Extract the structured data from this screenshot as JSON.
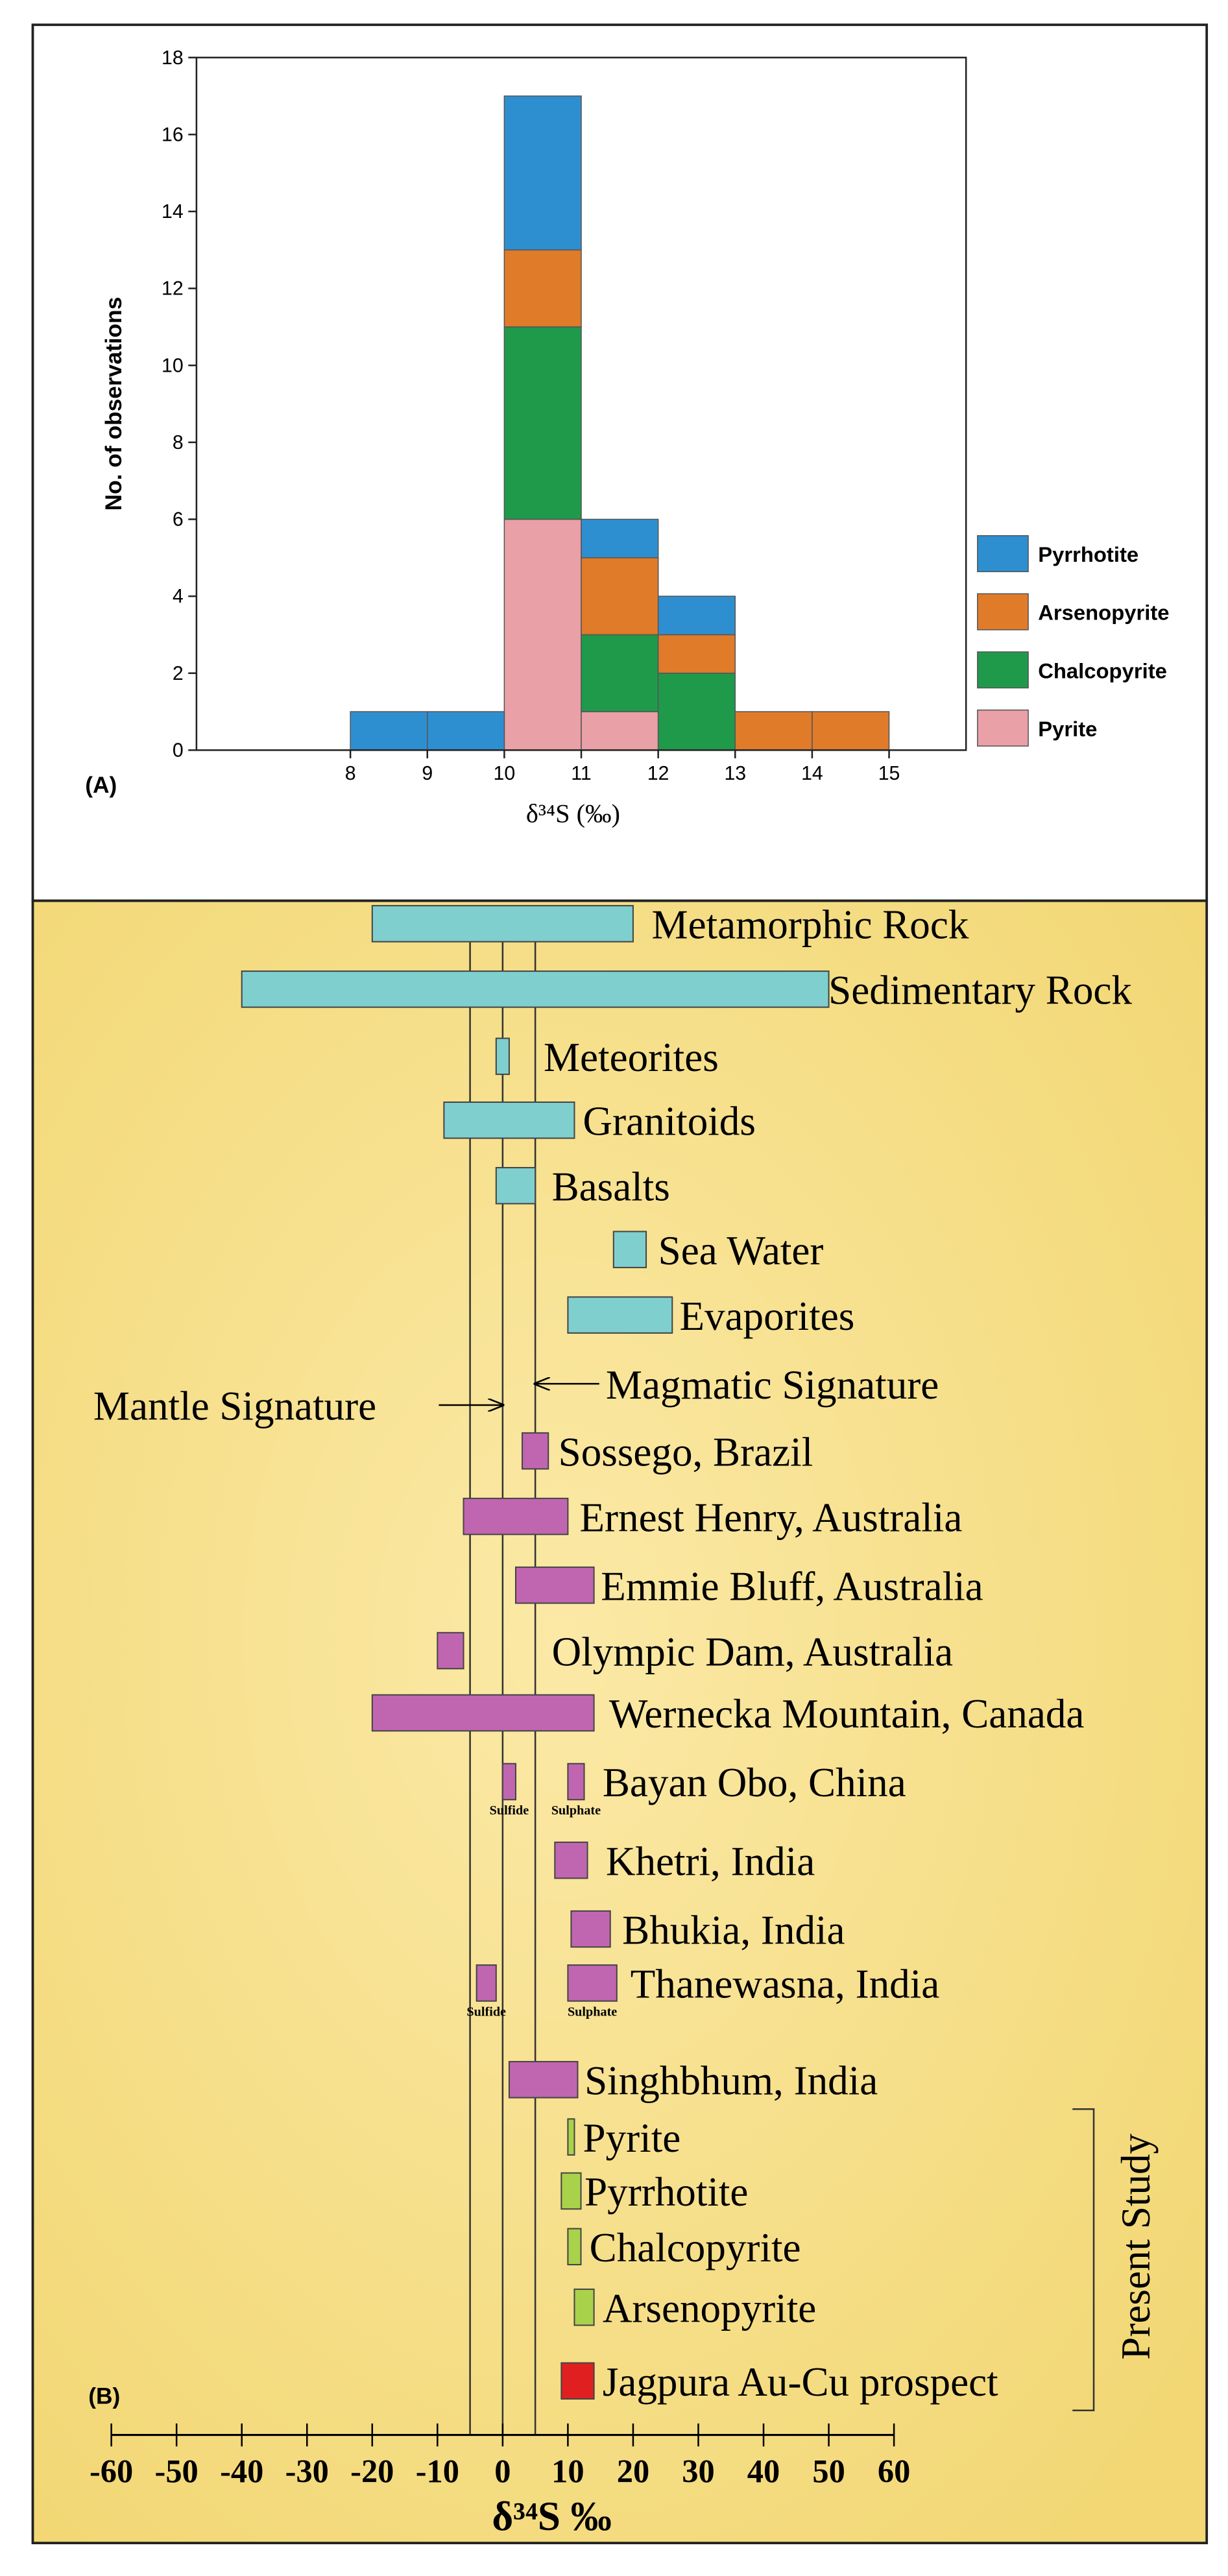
{
  "chart_data": [
    {
      "type": "histogram",
      "panel_label": "(A)",
      "ylabel": "No. of observations",
      "xlabel": "δ³⁴S (‰)",
      "bins": [
        8,
        9,
        10,
        11,
        12,
        13,
        14,
        15
      ],
      "series": [
        {
          "name": "Pyrite",
          "color": "#e9a0a6",
          "values": [
            0,
            0,
            6,
            1,
            0,
            0,
            0
          ]
        },
        {
          "name": "Chalcopyrite",
          "color": "#1f9a4b",
          "values": [
            0,
            0,
            5,
            2,
            2,
            0,
            0
          ]
        },
        {
          "name": "Arsenopyrite",
          "color": "#e07b2a",
          "values": [
            0,
            0,
            2,
            2,
            1,
            1,
            1
          ]
        },
        {
          "name": "Pyrrhotite",
          "color": "#2e8fd0",
          "values": [
            1,
            1,
            4,
            1,
            1,
            0,
            0
          ]
        }
      ],
      "stacked": true,
      "legend": "right",
      "xlim": [
        6,
        16
      ],
      "xticks": [
        8,
        9,
        10,
        11,
        12,
        13,
        14,
        15
      ],
      "ylim": [
        0,
        18
      ],
      "yticks": [
        0,
        2,
        4,
        6,
        8,
        10,
        12,
        14,
        16,
        18
      ]
    },
    {
      "type": "range",
      "panel_label": "(B)",
      "xlabel": "δ³⁴S ‰",
      "xlim": [
        -60,
        60
      ],
      "xticks": [
        -60,
        -50,
        -40,
        -30,
        -20,
        -10,
        0,
        10,
        20,
        30,
        40,
        50,
        60
      ],
      "reference_lines": [
        -5,
        0,
        5
      ],
      "annotations": [
        {
          "text": "Mantle Signature",
          "line": 1
        },
        {
          "text": "Magmatic Signature",
          "line": 2
        }
      ],
      "group_label": "Present Study",
      "rows": [
        {
          "label": "Metamorphic Rock",
          "color": "#7fcfcf",
          "ranges": [
            {
              "low": -20,
              "high": 20
            }
          ]
        },
        {
          "label": "Sedimentary Rock",
          "color": "#7fcfcf",
          "ranges": [
            {
              "low": -40,
              "high": 50
            }
          ]
        },
        {
          "label": "Meteorites",
          "color": "#7fcfcf",
          "ranges": [
            {
              "low": -1,
              "high": 1
            }
          ]
        },
        {
          "label": "Granitoids",
          "color": "#7fcfcf",
          "ranges": [
            {
              "low": -9,
              "high": 11
            }
          ]
        },
        {
          "label": "Basalts",
          "color": "#7fcfcf",
          "ranges": [
            {
              "low": -1,
              "high": 5
            }
          ]
        },
        {
          "label": "Sea Water",
          "color": "#7fcfcf",
          "ranges": [
            {
              "low": 17,
              "high": 22
            }
          ]
        },
        {
          "label": "Evaporites",
          "color": "#7fcfcf",
          "ranges": [
            {
              "low": 10,
              "high": 26
            }
          ]
        },
        {
          "label": "Sossego, Brazil",
          "color": "#c066b0",
          "ranges": [
            {
              "low": 3,
              "high": 7
            }
          ]
        },
        {
          "label": "Ernest Henry, Australia",
          "color": "#c066b0",
          "ranges": [
            {
              "low": -6,
              "high": 10
            }
          ]
        },
        {
          "label": "Emmie Bluff, Australia",
          "color": "#c066b0",
          "ranges": [
            {
              "low": 2,
              "high": 14
            }
          ]
        },
        {
          "label": "Olympic Dam, Australia",
          "color": "#c066b0",
          "ranges": [
            {
              "low": -10,
              "high": -6
            }
          ]
        },
        {
          "label": "Wernecka Mountain, Canada",
          "color": "#c066b0",
          "ranges": [
            {
              "low": -20,
              "high": 14
            }
          ]
        },
        {
          "label": "Bayan Obo, China",
          "color": "#c066b0",
          "ranges": [
            {
              "low": 0,
              "high": 2,
              "name": "Sulfide"
            },
            {
              "low": 10,
              "high": 12.5,
              "name": "Sulphate"
            }
          ]
        },
        {
          "label": "Khetri, India",
          "color": "#c066b0",
          "ranges": [
            {
              "low": 8,
              "high": 13
            }
          ]
        },
        {
          "label": "Bhukia, India",
          "color": "#c066b0",
          "ranges": [
            {
              "low": 10.5,
              "high": 16.5
            }
          ]
        },
        {
          "label": "Thanewasna, India",
          "color": "#c066b0",
          "ranges": [
            {
              "low": -4,
              "high": -1,
              "name": "Sulfide"
            },
            {
              "low": 10,
              "high": 17.5,
              "name": "Sulphate"
            }
          ]
        },
        {
          "label": "Singhbhum, India",
          "color": "#c066b0",
          "ranges": [
            {
              "low": 1,
              "high": 11.5
            }
          ]
        },
        {
          "label": "Pyrite",
          "color": "#a8d24a",
          "ranges": [
            {
              "low": 10,
              "high": 11
            }
          ]
        },
        {
          "label": "Pyrrhotite",
          "color": "#a8d24a",
          "ranges": [
            {
              "low": 9,
              "high": 12
            }
          ]
        },
        {
          "label": "Chalcopyrite",
          "color": "#a8d24a",
          "ranges": [
            {
              "low": 10,
              "high": 12
            }
          ]
        },
        {
          "label": "Arsenopyrite",
          "color": "#a8d24a",
          "ranges": [
            {
              "low": 11,
              "high": 14
            }
          ]
        },
        {
          "label": "Jagpura Au-Cu prospect",
          "color": "#e02020",
          "ranges": [
            {
              "low": 9,
              "high": 14
            }
          ]
        }
      ]
    }
  ]
}
